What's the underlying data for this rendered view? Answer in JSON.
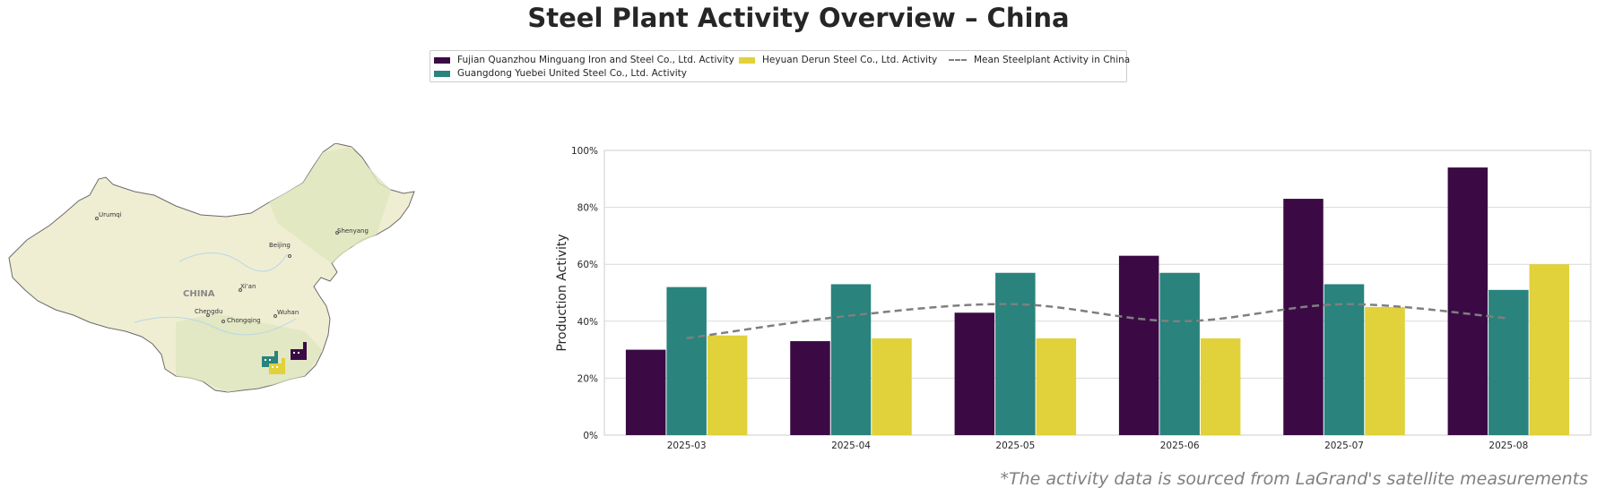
{
  "title": "Steel Plant Activity Overview – China",
  "footnote": "*The activity data is sourced from LaGrand's satellite measurements",
  "legend": {
    "items": [
      {
        "label": "Fujian Quanzhou Minguang Iron and Steel Co., Ltd. Activity",
        "color": "#3b0a45"
      },
      {
        "label": "Guangdong Yuebei United Steel Co., Ltd. Activity",
        "color": "#2a837d"
      },
      {
        "label": "Heyuan Derun Steel Co., Ltd. Activity",
        "color": "#e1d13a"
      },
      {
        "label": "Mean Steelplant Activity in China",
        "color": "#7f7f7f"
      }
    ]
  },
  "map": {
    "country_label": "CHINA",
    "cities": [
      "Urumqi",
      "Beijing",
      "Shenyang",
      "Xi'an",
      "Chengdu",
      "Chongqing",
      "Wuhan"
    ],
    "icon": "factory-icon"
  },
  "chart_data": {
    "type": "bar",
    "categories": [
      "2025-03",
      "2025-04",
      "2025-05",
      "2025-06",
      "2025-07",
      "2025-08"
    ],
    "series": [
      {
        "name": "Fujian Quanzhou Minguang Iron and Steel Co., Ltd. Activity",
        "color": "#3b0a45",
        "values": [
          30,
          33,
          43,
          63,
          83,
          94
        ]
      },
      {
        "name": "Guangdong Yuebei United Steel Co., Ltd. Activity",
        "color": "#2a837d",
        "values": [
          52,
          53,
          57,
          57,
          53,
          51
        ]
      },
      {
        "name": "Heyuan Derun Steel Co., Ltd. Activity",
        "color": "#e1d13a",
        "values": [
          35,
          34,
          34,
          34,
          45,
          60
        ]
      }
    ],
    "line_series": {
      "name": "Mean Steelplant Activity in China",
      "color": "#7f7f7f",
      "style": "dashed",
      "values": [
        34,
        42,
        46,
        40,
        46,
        41
      ]
    },
    "ylabel": "Production Activity",
    "xlabel": "",
    "ylim": [
      0,
      100
    ],
    "yticks": [
      "0%",
      "20%",
      "40%",
      "60%",
      "80%",
      "100%"
    ],
    "grid": true
  }
}
